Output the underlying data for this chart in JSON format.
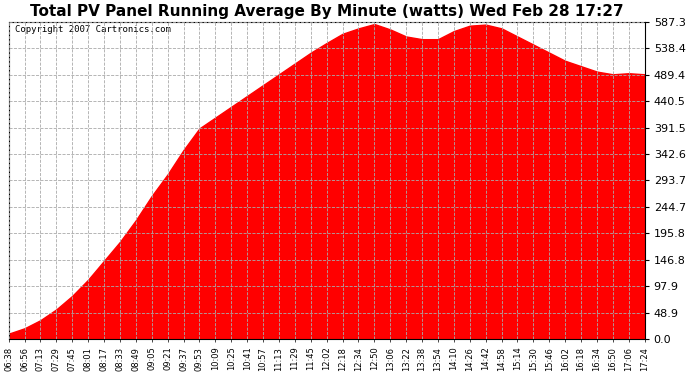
{
  "title": "Total PV Panel Running Average By Minute (watts) Wed Feb 28 17:27",
  "copyright": "Copyright 2007 Cartronics.com",
  "fill_color": "#FF0000",
  "line_color": "#FF0000",
  "background_color": "#FFFFFF",
  "plot_bg_color": "#FFFFFF",
  "grid_color_h": "#AAAAAA",
  "grid_color_v": "#AAAAAA",
  "ymin": 0.0,
  "ymax": 587.3,
  "yticks": [
    0.0,
    48.9,
    97.9,
    146.8,
    195.8,
    244.7,
    293.7,
    342.6,
    391.5,
    440.5,
    489.4,
    538.4,
    587.3
  ],
  "x_labels": [
    "06:38",
    "06:56",
    "07:13",
    "07:29",
    "07:45",
    "08:01",
    "08:17",
    "08:33",
    "08:49",
    "09:05",
    "09:21",
    "09:37",
    "09:53",
    "10:09",
    "10:25",
    "10:41",
    "10:57",
    "11:13",
    "11:29",
    "11:45",
    "12:02",
    "12:18",
    "12:34",
    "12:50",
    "13:06",
    "13:22",
    "13:38",
    "13:54",
    "14:10",
    "14:26",
    "14:42",
    "14:58",
    "15:14",
    "15:30",
    "15:46",
    "16:02",
    "16:18",
    "16:34",
    "16:50",
    "17:06",
    "17:24"
  ],
  "data_y": [
    10,
    20,
    35,
    55,
    80,
    110,
    145,
    180,
    220,
    265,
    305,
    350,
    390,
    410,
    430,
    450,
    470,
    490,
    510,
    530,
    548,
    565,
    575,
    583,
    573,
    560,
    555,
    555,
    570,
    580,
    582,
    575,
    560,
    545,
    530,
    515,
    505,
    495,
    490,
    492,
    490
  ],
  "title_fontsize": 11,
  "ytick_fontsize": 8,
  "xtick_fontsize": 6,
  "copyright_fontsize": 6.5
}
